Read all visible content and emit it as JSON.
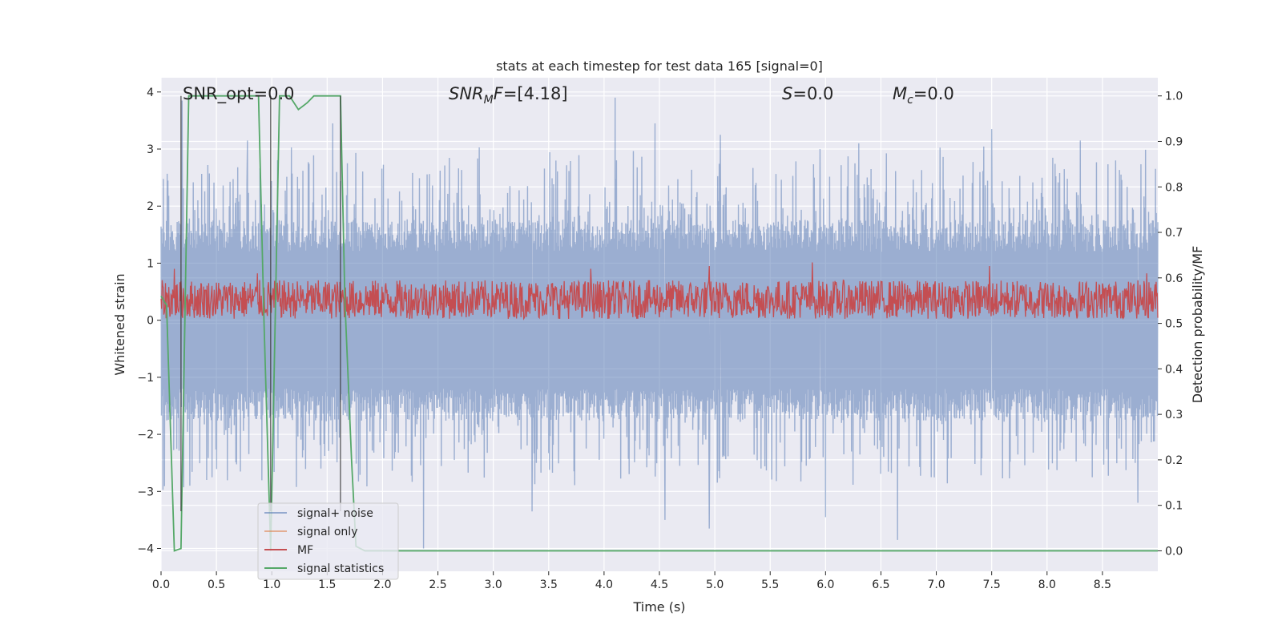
{
  "chart_data": {
    "type": "line",
    "title": "stats at each timestep for test data 165 [signal=0]",
    "xlabel": "Time (s)",
    "ylabel": "Whitened strain",
    "ylabel_right": "Detection probability/MF",
    "xlim": [
      0.0,
      9.0
    ],
    "ylim": [
      -4.4,
      4.25
    ],
    "ylim_right": [
      -0.045,
      1.04
    ],
    "x_ticks": [
      "0.0",
      "0.5",
      "1.0",
      "1.5",
      "2.0",
      "2.5",
      "3.0",
      "3.5",
      "4.0",
      "4.5",
      "5.0",
      "5.5",
      "6.0",
      "6.5",
      "7.0",
      "7.5",
      "8.0",
      "8.5"
    ],
    "y_ticks": [
      "4",
      "3",
      "2",
      "1",
      "0",
      "−1",
      "−2",
      "−3",
      "−4"
    ],
    "y_ticks_right": [
      "1.0",
      "0.9",
      "0.8",
      "0.7",
      "0.6",
      "0.5",
      "0.4",
      "0.3",
      "0.2",
      "0.1",
      "0.0"
    ],
    "grid": true,
    "legend_position": "lower-left",
    "annotations": {
      "snr_opt": "SNR_opt=0.0",
      "snr_mf": "=[4.18]",
      "s": "=0.0",
      "mc": "=0.0"
    },
    "series": [
      {
        "name": "signal+ noise",
        "axis": "left",
        "color": "#4c72b0",
        "description_noise_band": [
          -1.6,
          1.6
        ],
        "peaks": [
          {
            "x": 0.19,
            "y": 3.85
          },
          {
            "x": 0.26,
            "y": -2.9
          },
          {
            "x": 0.78,
            "y": 3.15
          },
          {
            "x": 1.55,
            "y": 3.45
          },
          {
            "x": 2.37,
            "y": -4.0
          },
          {
            "x": 3.35,
            "y": -3.35
          },
          {
            "x": 4.1,
            "y": 3.9
          },
          {
            "x": 4.46,
            "y": 3.45
          },
          {
            "x": 4.55,
            "y": -3.5
          },
          {
            "x": 4.95,
            "y": -3.65
          },
          {
            "x": 5.05,
            "y": 3.25
          },
          {
            "x": 5.95,
            "y": 3.0
          },
          {
            "x": 6.0,
            "y": -3.45
          },
          {
            "x": 6.3,
            "y": 3.1
          },
          {
            "x": 6.65,
            "y": -3.85
          },
          {
            "x": 7.5,
            "y": 3.35
          },
          {
            "x": 8.3,
            "y": 3.15
          },
          {
            "x": 8.82,
            "y": -3.2
          }
        ]
      },
      {
        "name": "signal only",
        "axis": "left",
        "color": "#dd8452",
        "values": []
      },
      {
        "name": "MF",
        "axis": "right",
        "color": "#c44e52",
        "band": [
          0.5,
          0.6
        ],
        "peaks": [
          {
            "x": 0.12,
            "y": 0.62
          },
          {
            "x": 0.87,
            "y": 0.61
          },
          {
            "x": 3.88,
            "y": 0.62
          },
          {
            "x": 4.95,
            "y": 0.626
          },
          {
            "x": 5.88,
            "y": 0.634
          },
          {
            "x": 7.48,
            "y": 0.626
          },
          {
            "x": 8.9,
            "y": 0.61
          }
        ]
      },
      {
        "name": "signal statistics",
        "axis": "right",
        "color": "#55a868",
        "x": [
          0.0,
          0.05,
          0.12,
          0.18,
          0.25,
          0.88,
          0.93,
          0.99,
          1.07,
          1.16,
          1.24,
          1.32,
          1.38,
          1.62,
          1.66,
          1.72,
          1.76,
          1.84,
          9.0
        ],
        "values": [
          0.56,
          0.54,
          0.0,
          0.005,
          1.0,
          1.0,
          0.5,
          0.0,
          1.0,
          1.0,
          0.97,
          0.985,
          1.0,
          1.0,
          0.55,
          0.2,
          0.01,
          0.0,
          0.0
        ]
      }
    ],
    "vertical_markers": [
      0.18,
      0.99,
      1.62
    ]
  }
}
